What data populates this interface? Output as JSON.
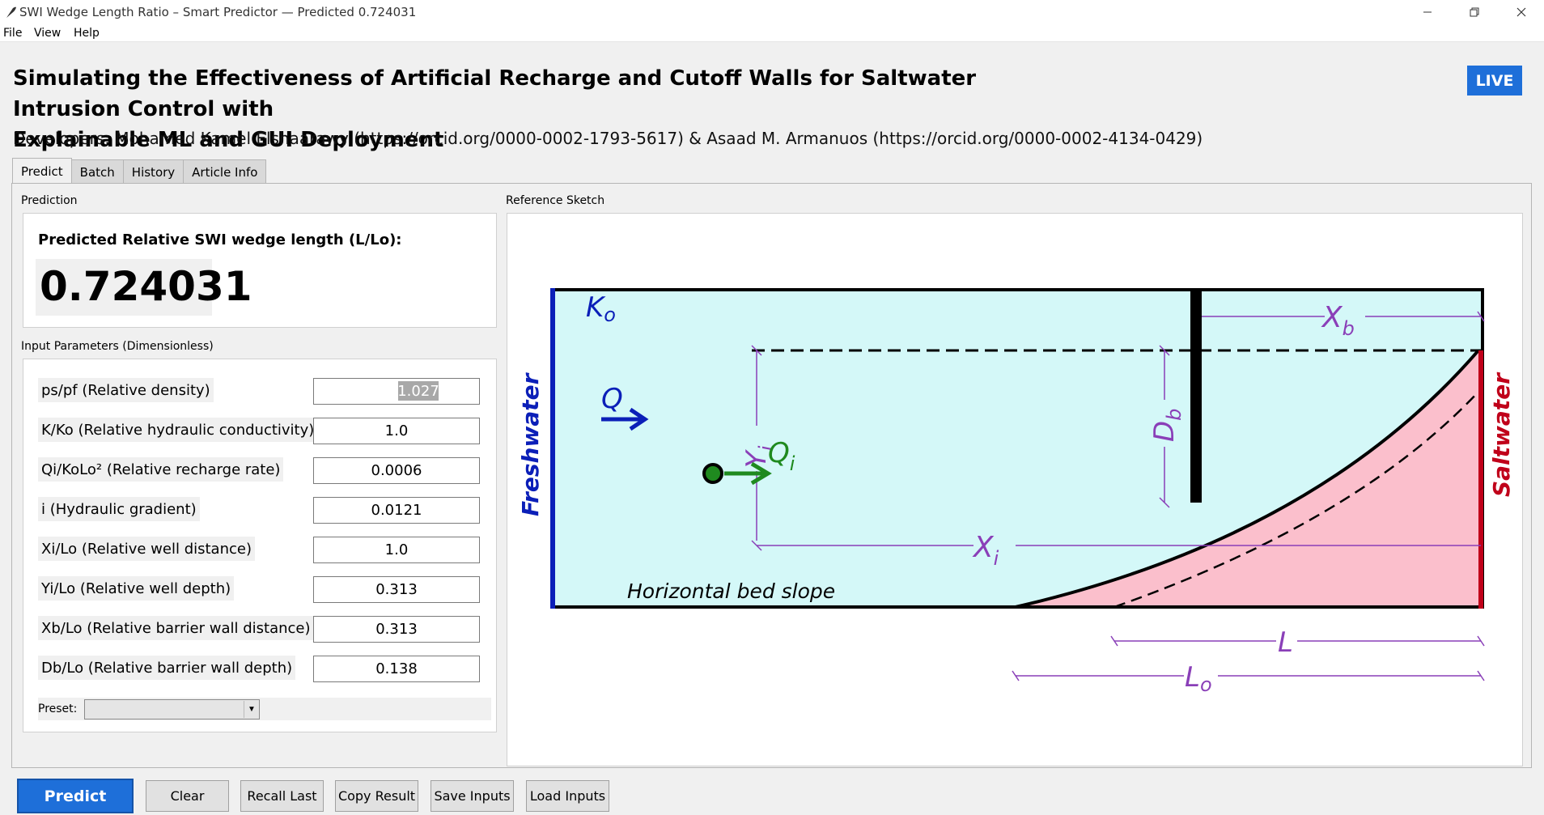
{
  "window": {
    "title": "SWI Wedge Length Ratio – Smart Predictor — Predicted 0.724031"
  },
  "menu": [
    "File",
    "View",
    "Help"
  ],
  "header": {
    "title_line1": "Simulating the Effectiveness of Artificial Recharge and Cutoff Walls for Saltwater Intrusion Control with",
    "title_line2": "Explainable ML and GUI Deployment",
    "developers": "Developers: Mohamed Kamel Elshaarawy (https://orcid.org/0000-0002-1793-5617)  &  Asaad M. Armanuos (https://orcid.org/0000-0002-4134-0429)",
    "badge": "LIVE"
  },
  "tabs": [
    {
      "label": "Predict",
      "active": true
    },
    {
      "label": "Batch",
      "active": false
    },
    {
      "label": "History",
      "active": false
    },
    {
      "label": "Article Info",
      "active": false
    }
  ],
  "prediction": {
    "group_label": "Prediction",
    "label": "Predicted Relative SWI wedge length (L/Lo):",
    "value": "0.724031"
  },
  "inputs": {
    "group_label": "Input Parameters (Dimensionless)",
    "params": [
      {
        "label": "ps/pf   (Relative density)",
        "value": "1.027"
      },
      {
        "label": "K/Ko    (Relative hydraulic conductivity)",
        "value": "1.0"
      },
      {
        "label": "Qi/KoLo²  (Relative recharge rate)",
        "value": "0.0006"
      },
      {
        "label": "i        (Hydraulic gradient)",
        "value": "0.0121"
      },
      {
        "label": "Xi/Lo   (Relative well distance)",
        "value": "1.0"
      },
      {
        "label": "Yi/Lo   (Relative well depth)",
        "value": "0.313"
      },
      {
        "label": "Xb/Lo   (Relative barrier wall distance)",
        "value": "0.313"
      },
      {
        "label": "Db/Lo   (Relative barrier wall depth)",
        "value": "0.138"
      }
    ],
    "preset_label": "Preset:",
    "preset_value": ""
  },
  "sketch": {
    "group_label": "Reference Sketch",
    "labels": {
      "ko": "K",
      "ko_sub": "o",
      "xb": "X",
      "xb_sub": "b",
      "yi": "Y",
      "yi_sub": "i",
      "db": "D",
      "db_sub": "b",
      "q": "Q",
      "qi": "Q",
      "qi_sub": "i",
      "xi": "X",
      "xi_sub": "i",
      "freshwater": "Freshwater",
      "saltwater": "Saltwater",
      "bed": "Horizontal bed slope",
      "l": "L",
      "lo": "L",
      "lo_sub": "o"
    },
    "colors": {
      "water": "#d4f8f8",
      "saltwater": "#fbbfcc",
      "fresh_boundary": "#0b1fb8",
      "salt_boundary": "#c0001a",
      "dimension": "#8a3fb8",
      "well_arrow": "#1f8a1f"
    }
  },
  "buttons": {
    "predict": "Predict",
    "clear": "Clear",
    "recall": "Recall Last",
    "copy": "Copy Result",
    "save": "Save Inputs",
    "load": "Load Inputs"
  },
  "accent_color": "#1e6fd9"
}
